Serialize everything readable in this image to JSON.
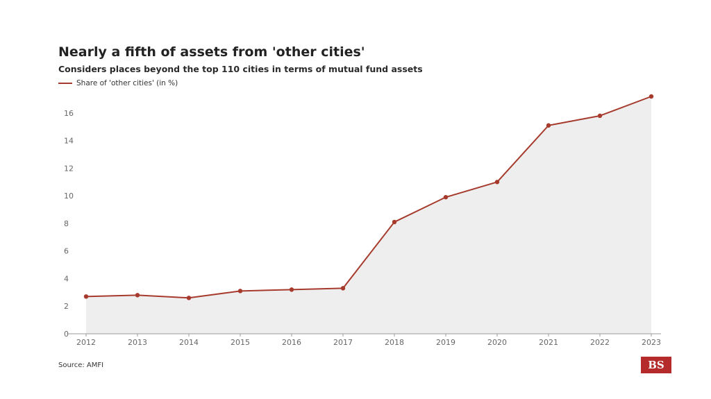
{
  "title": "Nearly a fifth of assets from 'other cities'",
  "subtitle": "Considers places beyond the top 110 cities in terms of mutual fund assets",
  "source": "Source: AMFI",
  "logo_text": "BS",
  "colors": {
    "line": "#a63a2c",
    "area": "#eeeeee",
    "logo_bg": "#b52a2a",
    "axis": "#999999"
  },
  "chart_data": {
    "type": "area",
    "title": "Nearly a fifth of assets from 'other cities'",
    "subtitle": "Considers places beyond the top 110 cities in terms of mutual fund assets",
    "xlabel": "",
    "ylabel": "",
    "categories": [
      "2012",
      "2013",
      "2014",
      "2015",
      "2016",
      "2017",
      "2018",
      "2019",
      "2020",
      "2021",
      "2022",
      "2023"
    ],
    "series": [
      {
        "name": "Share of 'other cities' (in %)",
        "values": [
          2.7,
          2.8,
          2.6,
          3.1,
          3.2,
          3.3,
          8.1,
          9.9,
          11.0,
          15.1,
          15.8,
          17.2
        ]
      }
    ],
    "ylim": [
      0,
      17.2
    ],
    "yticks": [
      0,
      2,
      4,
      6,
      8,
      10,
      12,
      14,
      16
    ],
    "grid": false,
    "legend": "top-left"
  }
}
